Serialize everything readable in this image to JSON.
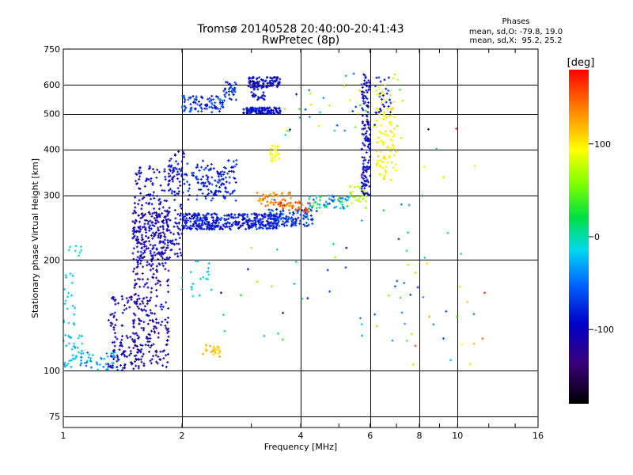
{
  "chart_data": {
    "type": "scatter",
    "title": "Tromsø 20140528 20:40:00-20:41:43",
    "subtitle": "RwPretec (8p)",
    "stats_header": "Phases",
    "stats_lines": [
      "mean, sd,O: -79.8, 19.0",
      "mean, sd,X:  95.2, 25.2"
    ],
    "xlabel": "Frequency [MHz]",
    "ylabel": "Stationary phase Virtual Height [km]",
    "x_scale": "log",
    "y_scale": "log",
    "xlim": [
      1,
      16
    ],
    "ylim": [
      70,
      750
    ],
    "x_ticks": [
      1,
      2,
      4,
      6,
      8,
      10,
      16
    ],
    "y_ticks": [
      75,
      100,
      200,
      300,
      400,
      500,
      600,
      750
    ],
    "grid": true,
    "colorbar": {
      "label": "[deg]",
      "range": [
        -180,
        180
      ],
      "ticks": [
        100,
        0,
        -100
      ]
    },
    "clusters": [
      {
        "x": [
          1.0,
          1.12
        ],
        "y": [
          102,
          125
        ],
        "phase": [
          -40,
          -15
        ],
        "n": 35
      },
      {
        "x": [
          1.0,
          1.07
        ],
        "y": [
          130,
          185
        ],
        "phase": [
          -35,
          -15
        ],
        "n": 20
      },
      {
        "x": [
          1.02,
          1.12
        ],
        "y": [
          205,
          222
        ],
        "phase": [
          -25,
          -10
        ],
        "n": 8
      },
      {
        "x": [
          1.1,
          1.38
        ],
        "y": [
          100,
          112
        ],
        "phase": [
          -70,
          -20
        ],
        "n": 45
      },
      {
        "x": [
          1.3,
          1.58
        ],
        "y": [
          100,
          160
        ],
        "phase": [
          -130,
          -90
        ],
        "n": 130
      },
      {
        "x": [
          1.5,
          1.85
        ],
        "y": [
          102,
          270
        ],
        "phase": [
          -140,
          -90
        ],
        "n": 320
      },
      {
        "x": [
          1.5,
          2.0
        ],
        "y": [
          200,
          360
        ],
        "phase": [
          -130,
          -85
        ],
        "n": 260
      },
      {
        "x": [
          1.85,
          2.05
        ],
        "y": [
          300,
          395
        ],
        "phase": [
          -110,
          -80
        ],
        "n": 45
      },
      {
        "x": [
          2.0,
          3.5
        ],
        "y": [
          242,
          268
        ],
        "phase": [
          -115,
          -70
        ],
        "n": 380
      },
      {
        "x": [
          3.3,
          4.3
        ],
        "y": [
          247,
          275
        ],
        "phase": [
          -100,
          -60
        ],
        "n": 120
      },
      {
        "x": [
          2.05,
          2.75
        ],
        "y": [
          290,
          375
        ],
        "phase": [
          -110,
          -70
        ],
        "n": 140
      },
      {
        "x": [
          2.0,
          2.55
        ],
        "y": [
          505,
          560
        ],
        "phase": [
          -110,
          -50
        ],
        "n": 90
      },
      {
        "x": [
          2.55,
          2.75
        ],
        "y": [
          540,
          610
        ],
        "phase": [
          -90,
          -70
        ],
        "n": 35
      },
      {
        "x": [
          2.85,
          3.55
        ],
        "y": [
          500,
          520
        ],
        "phase": [
          -115,
          -80
        ],
        "n": 120
      },
      {
        "x": [
          2.95,
          3.55
        ],
        "y": [
          590,
          630
        ],
        "phase": [
          -120,
          -90
        ],
        "n": 90
      },
      {
        "x": [
          3.0,
          3.25
        ],
        "y": [
          540,
          600
        ],
        "phase": [
          -110,
          -90
        ],
        "n": 25
      },
      {
        "x": [
          3.1,
          3.8
        ],
        "y": [
          280,
          305
        ],
        "phase": [
          130,
          160
        ],
        "n": 60
      },
      {
        "x": [
          3.5,
          4.2
        ],
        "y": [
          270,
          290
        ],
        "phase": [
          140,
          175
        ],
        "n": 35
      },
      {
        "x": [
          4.2,
          5.3
        ],
        "y": [
          276,
          300
        ],
        "phase": [
          -80,
          20
        ],
        "n": 60
      },
      {
        "x": [
          3.35,
          3.55
        ],
        "y": [
          370,
          410
        ],
        "phase": [
          90,
          115
        ],
        "n": 25
      },
      {
        "x": [
          2.25,
          2.5
        ],
        "y": [
          109,
          118
        ],
        "phase": [
          110,
          140
        ],
        "n": 25
      },
      {
        "x": [
          5.3,
          5.9
        ],
        "y": [
          285,
          320
        ],
        "phase": [
          40,
          90
        ],
        "n": 25
      },
      {
        "x": [
          5.7,
          6.0
        ],
        "y": [
          300,
          640
        ],
        "phase": [
          -130,
          -80
        ],
        "n": 150
      },
      {
        "x": [
          6.2,
          7.0
        ],
        "y": [
          330,
          600
        ],
        "phase": [
          80,
          120
        ],
        "n": 110
      },
      {
        "x": [
          6.2,
          6.8
        ],
        "y": [
          500,
          640
        ],
        "phase": [
          -120,
          -60
        ],
        "n": 25
      },
      {
        "x": [
          2.0,
          2.4
        ],
        "y": [
          150,
          200
        ],
        "phase": [
          -40,
          -10
        ],
        "n": 20
      },
      {
        "x": [
          2.5,
          7.5
        ],
        "y": [
          120,
          300
        ],
        "phase": [
          -100,
          60
        ],
        "n": 50
      },
      {
        "x": [
          3.5,
          7.5
        ],
        "y": [
          400,
          650
        ],
        "phase": [
          -100,
          100
        ],
        "n": 45
      },
      {
        "x": [
          7.3,
          12.0
        ],
        "y": [
          100,
          500
        ],
        "phase": [
          -130,
          180
        ],
        "n": 35
      }
    ]
  }
}
